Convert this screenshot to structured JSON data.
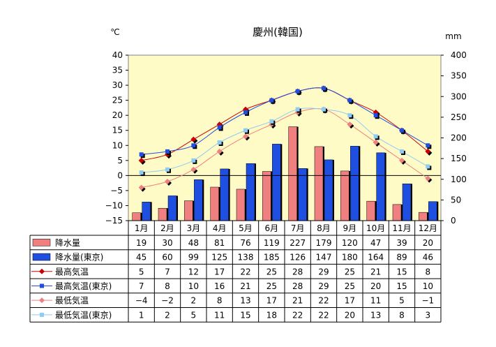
{
  "chart_data": {
    "type": "bar",
    "title": "慶州(韓国)",
    "left_unit": "℃",
    "right_unit": "mm",
    "y_left_range": [
      -15,
      40
    ],
    "y_left_ticks": [
      "40",
      "35",
      "30",
      "25",
      "20",
      "15",
      "10",
      "5",
      "0",
      "−5",
      "−10",
      "−15"
    ],
    "y_right_range": [
      0,
      400
    ],
    "y_right_ticks": [
      "400",
      "350",
      "300",
      "250",
      "200",
      "150",
      "100",
      "50",
      "0"
    ],
    "categories": [
      "1月",
      "2月",
      "3月",
      "4月",
      "5月",
      "6月",
      "7月",
      "8月",
      "9月",
      "10月",
      "11月",
      "12月"
    ],
    "series": [
      {
        "name": "降水量",
        "kind": "bar",
        "axis": "right",
        "color": "#f08080",
        "values": [
          19,
          30,
          48,
          81,
          76,
          119,
          227,
          179,
          120,
          47,
          39,
          20
        ],
        "display": [
          "19",
          "30",
          "48",
          "81",
          "76",
          "119",
          "227",
          "179",
          "120",
          "47",
          "39",
          "20"
        ]
      },
      {
        "name": "降水量(東京)",
        "kind": "bar",
        "axis": "right",
        "color": "#1f4fe0",
        "values": [
          45,
          60,
          99,
          125,
          138,
          185,
          126,
          147,
          180,
          164,
          89,
          46
        ],
        "display": [
          "45",
          "60",
          "99",
          "125",
          "138",
          "185",
          "126",
          "147",
          "180",
          "164",
          "89",
          "46"
        ]
      },
      {
        "name": "最高気温",
        "kind": "line",
        "axis": "left",
        "color": "#cc0000",
        "marker": "diamond",
        "values": [
          5,
          7,
          12,
          17,
          22,
          25,
          28,
          29,
          25,
          21,
          15,
          8
        ],
        "display": [
          "5",
          "7",
          "12",
          "17",
          "22",
          "25",
          "28",
          "29",
          "25",
          "21",
          "15",
          "8"
        ]
      },
      {
        "name": "最高気温(東京)",
        "kind": "line",
        "axis": "left",
        "color": "#1f4fe0",
        "marker": "square",
        "values": [
          7,
          8,
          10,
          16,
          21,
          25,
          28,
          29,
          25,
          20,
          15,
          10
        ],
        "display": [
          "7",
          "8",
          "10",
          "16",
          "21",
          "25",
          "28",
          "29",
          "25",
          "20",
          "15",
          "10"
        ]
      },
      {
        "name": "最低気温",
        "kind": "line",
        "axis": "left",
        "color": "#f08080",
        "marker": "diamond",
        "values": [
          -4,
          -2,
          2,
          8,
          13,
          17,
          21,
          22,
          17,
          11,
          5,
          -1
        ],
        "display": [
          "−4",
          "−2",
          "2",
          "8",
          "13",
          "17",
          "21",
          "22",
          "17",
          "11",
          "5",
          "−1"
        ]
      },
      {
        "name": "最低気温(東京)",
        "kind": "line",
        "axis": "left",
        "color": "#8ecbf5",
        "marker": "square",
        "values": [
          1,
          2,
          5,
          11,
          15,
          18,
          22,
          22,
          20,
          13,
          8,
          3
        ],
        "display": [
          "1",
          "2",
          "5",
          "11",
          "15",
          "18",
          "22",
          "22",
          "20",
          "13",
          "8",
          "3"
        ]
      }
    ],
    "colors": {
      "plot_background": "#fffbc6",
      "zero_line": "#000000"
    },
    "grid": false,
    "legend": "data-table-below"
  }
}
